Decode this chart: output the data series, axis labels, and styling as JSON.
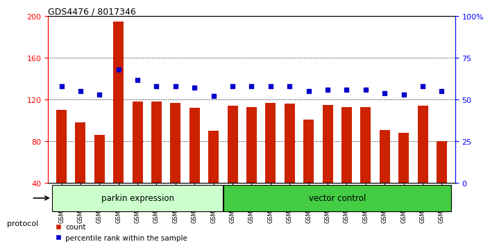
{
  "title": "GDS4476 / 8017346",
  "samples": [
    "GSM729739",
    "GSM729740",
    "GSM729741",
    "GSM729742",
    "GSM729743",
    "GSM729744",
    "GSM729745",
    "GSM729746",
    "GSM729747",
    "GSM729727",
    "GSM729728",
    "GSM729729",
    "GSM729730",
    "GSM729731",
    "GSM729732",
    "GSM729733",
    "GSM729734",
    "GSM729735",
    "GSM729736",
    "GSM729737",
    "GSM729738"
  ],
  "counts": [
    110,
    98,
    86,
    195,
    118,
    118,
    117,
    112,
    90,
    114,
    113,
    117,
    116,
    101,
    115,
    113,
    113,
    91,
    88,
    114,
    80
  ],
  "percentiles": [
    58,
    55,
    53,
    68,
    62,
    58,
    58,
    57,
    52,
    58,
    58,
    58,
    58,
    55,
    56,
    56,
    56,
    54,
    53,
    58,
    55
  ],
  "bar_color": "#cc2200",
  "marker_color": "#0000cc",
  "group1_label": "parkin expression",
  "group2_label": "vector control",
  "group1_color": "#ccffcc",
  "group2_color": "#44cc44",
  "group1_count": 9,
  "group2_count": 12,
  "ylim_left": [
    40,
    200
  ],
  "ylim_right": [
    0,
    100
  ],
  "yticks_left": [
    40,
    80,
    120,
    160,
    200
  ],
  "yticks_right": [
    0,
    25,
    50,
    75,
    100
  ],
  "protocol_label": "protocol",
  "legend_count_label": "count",
  "legend_pct_label": "percentile rank within the sample",
  "background_color": "#ffffff",
  "plot_bg_color": "#ffffff"
}
